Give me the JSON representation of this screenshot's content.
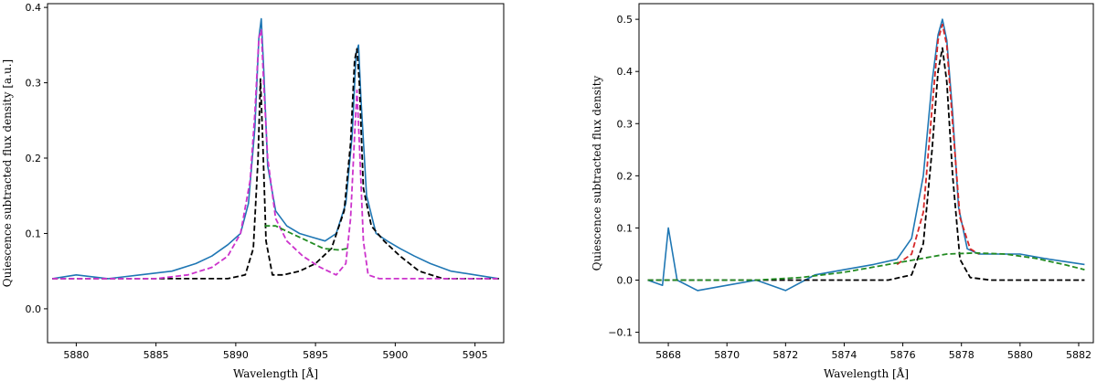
{
  "chart_data": [
    {
      "type": "line",
      "xlabel": "Wavelength [Å]",
      "ylabel": "Quiescence subtracted flux density [a.u.]",
      "xlim": [
        5878.2,
        5906.8
      ],
      "ylim": [
        -0.045,
        0.405
      ],
      "xticks": [
        5880,
        5885,
        5890,
        5895,
        5900,
        5905
      ],
      "yticks": [
        0.0,
        0.1,
        0.2,
        0.3,
        0.4
      ],
      "xtick_labels": [
        "5880",
        "5885",
        "5890",
        "5895",
        "5900",
        "5905"
      ],
      "ytick_labels": [
        "0.0",
        "0.1",
        "0.2",
        "0.3",
        "0.4"
      ],
      "grid": false,
      "series": [
        {
          "style": "solid",
          "color": "#1f77b4",
          "x": [
            5878.5,
            5880,
            5882,
            5884,
            5886,
            5887.5,
            5888.5,
            5889.5,
            5890.3,
            5890.8,
            5891.2,
            5891.45,
            5891.6,
            5891.75,
            5892.0,
            5892.5,
            5893.2,
            5894.0,
            5894.8,
            5895.6,
            5896.3,
            5896.9,
            5897.3,
            5897.55,
            5897.7,
            5897.85,
            5898.2,
            5898.8,
            5899.5,
            5900.3,
            5901.2,
            5902.2,
            5903.5,
            5905,
            5906.5
          ],
          "y": [
            0.04,
            0.045,
            0.04,
            0.045,
            0.05,
            0.06,
            0.07,
            0.085,
            0.1,
            0.14,
            0.24,
            0.36,
            0.385,
            0.32,
            0.19,
            0.13,
            0.11,
            0.1,
            0.095,
            0.09,
            0.1,
            0.14,
            0.23,
            0.34,
            0.35,
            0.28,
            0.15,
            0.1,
            0.09,
            0.08,
            0.07,
            0.06,
            0.05,
            0.045,
            0.04
          ]
        },
        {
          "style": "dashed",
          "color": "#000000",
          "x": [
            5878.5,
            5886,
            5889.5,
            5890.6,
            5891.1,
            5891.4,
            5891.55,
            5891.7,
            5891.9,
            5892.3,
            5893.0,
            5894.0,
            5895.0,
            5896.0,
            5896.8,
            5897.2,
            5897.45,
            5897.6,
            5897.75,
            5898.0,
            5898.5,
            5899.3,
            5900.3,
            5901.5,
            5903,
            5906.5
          ],
          "y": [
            0.04,
            0.04,
            0.04,
            0.045,
            0.08,
            0.2,
            0.305,
            0.22,
            0.09,
            0.045,
            0.045,
            0.05,
            0.06,
            0.08,
            0.13,
            0.22,
            0.33,
            0.345,
            0.3,
            0.16,
            0.11,
            0.09,
            0.07,
            0.05,
            0.04,
            0.04
          ]
        },
        {
          "style": "dashed",
          "color": "#cc33cc",
          "x": [
            5878.5,
            5885,
            5887,
            5888.5,
            5889.5,
            5890.3,
            5890.9,
            5891.2,
            5891.45,
            5891.6,
            5891.75,
            5892.0,
            5892.5,
            5893.2,
            5894.2,
            5895.3,
            5896.3,
            5896.9,
            5897.2,
            5897.45,
            5897.6,
            5897.75,
            5898.0,
            5898.3,
            5899,
            5900,
            5906.5
          ],
          "y": [
            0.04,
            0.04,
            0.045,
            0.055,
            0.07,
            0.1,
            0.17,
            0.26,
            0.36,
            0.37,
            0.3,
            0.2,
            0.12,
            0.09,
            0.07,
            0.055,
            0.045,
            0.06,
            0.12,
            0.23,
            0.29,
            0.22,
            0.09,
            0.045,
            0.04,
            0.04,
            0.04
          ]
        },
        {
          "style": "dashed",
          "color": "#228b22",
          "x": [
            5891.8,
            5892.5,
            5893.5,
            5894.5,
            5895.5,
            5896.5,
            5897.0
          ],
          "y": [
            0.11,
            0.11,
            0.1,
            0.09,
            0.08,
            0.078,
            0.08
          ]
        }
      ]
    },
    {
      "type": "line",
      "xlabel": "Wavelength [Å]",
      "ylabel": "Quiescence subtracted flux density",
      "xlim": [
        5867.0,
        5882.5
      ],
      "ylim": [
        -0.12,
        0.53
      ],
      "xticks": [
        5868,
        5870,
        5872,
        5874,
        5876,
        5878,
        5880,
        5882
      ],
      "yticks": [
        -0.1,
        0.0,
        0.1,
        0.2,
        0.3,
        0.4,
        0.5
      ],
      "xtick_labels": [
        "5868",
        "5870",
        "5872",
        "5874",
        "5876",
        "5878",
        "5880",
        "5882"
      ],
      "ytick_labels": [
        "−0.1",
        "0.0",
        "0.1",
        "0.2",
        "0.3",
        "0.4",
        "0.5"
      ],
      "grid": false,
      "series": [
        {
          "style": "solid",
          "color": "#1f77b4",
          "x": [
            5867.3,
            5867.8,
            5868.0,
            5868.3,
            5869,
            5870,
            5871,
            5872,
            5873,
            5874,
            5875,
            5875.8,
            5876.3,
            5876.7,
            5877.0,
            5877.2,
            5877.35,
            5877.5,
            5877.7,
            5877.9,
            5878.2,
            5878.6,
            5879.2,
            5880,
            5881,
            5882.2
          ],
          "y": [
            0.0,
            -0.01,
            0.1,
            0.0,
            -0.02,
            -0.01,
            0.0,
            -0.02,
            0.01,
            0.02,
            0.03,
            0.04,
            0.08,
            0.2,
            0.38,
            0.47,
            0.5,
            0.46,
            0.32,
            0.14,
            0.06,
            0.05,
            0.05,
            0.05,
            0.04,
            0.03
          ]
        },
        {
          "style": "dashed",
          "color": "#000000",
          "x": [
            5867.3,
            5875.5,
            5876.3,
            5876.7,
            5877.0,
            5877.2,
            5877.35,
            5877.5,
            5877.7,
            5877.95,
            5878.3,
            5879,
            5882.2
          ],
          "y": [
            0.0,
            0.0,
            0.01,
            0.07,
            0.25,
            0.4,
            0.445,
            0.38,
            0.2,
            0.04,
            0.005,
            0.0,
            0.0
          ]
        },
        {
          "style": "dashed",
          "color": "#d62728",
          "x": [
            5875.8,
            5876.3,
            5876.7,
            5877.0,
            5877.2,
            5877.35,
            5877.5,
            5877.7,
            5877.95,
            5878.3,
            5878.6
          ],
          "y": [
            0.03,
            0.05,
            0.13,
            0.33,
            0.46,
            0.49,
            0.45,
            0.3,
            0.12,
            0.06,
            0.05
          ]
        },
        {
          "style": "dashed",
          "color": "#228b22",
          "x": [
            5867.3,
            5869,
            5871,
            5872.5,
            5874,
            5875.5,
            5876.5,
            5877.5,
            5878.5,
            5879.5,
            5880.5,
            5881.5,
            5882.2
          ],
          "y": [
            0.0,
            0.0,
            0.0,
            0.005,
            0.015,
            0.03,
            0.04,
            0.05,
            0.052,
            0.05,
            0.042,
            0.03,
            0.02
          ]
        }
      ]
    }
  ]
}
